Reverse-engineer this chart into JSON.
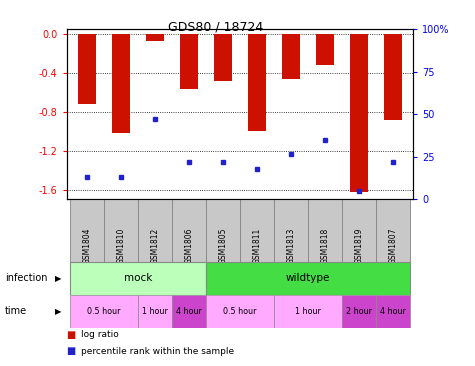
{
  "title": "GDS80 / 18724",
  "samples": [
    "GSM1804",
    "GSM1810",
    "GSM1812",
    "GSM1806",
    "GSM1805",
    "GSM1811",
    "GSM1813",
    "GSM1818",
    "GSM1819",
    "GSM1807"
  ],
  "log_ratios": [
    -0.72,
    -1.02,
    -0.07,
    -0.56,
    -0.48,
    -1.0,
    -0.46,
    -0.32,
    -1.62,
    -0.88
  ],
  "percentile_ranks": [
    13,
    13,
    47,
    22,
    22,
    18,
    27,
    35,
    5,
    22
  ],
  "ylim_left": [
    -1.7,
    0.05
  ],
  "ylim_right": [
    0,
    100
  ],
  "yticks_left": [
    0.0,
    -0.4,
    -0.8,
    -1.2,
    -1.6
  ],
  "yticks_right": [
    0,
    25,
    50,
    75,
    100
  ],
  "bar_color": "#cc1100",
  "dot_color": "#2222cc",
  "bar_width": 0.55,
  "plot_bg": "#ffffff",
  "mock_color_light": "#bbffbb",
  "mock_color_dark": "#44dd44",
  "wildtype_color": "#44dd44",
  "time_light": "#ffaaff",
  "time_dark": "#cc44cc",
  "label_bg": "#c8c8c8"
}
